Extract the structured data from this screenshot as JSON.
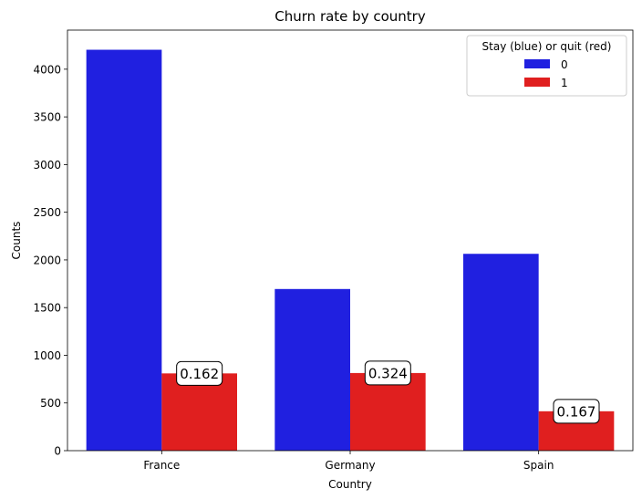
{
  "chart_data": {
    "type": "bar",
    "title": "Churn rate by country",
    "xlabel": "Country",
    "ylabel": "Counts",
    "categories": [
      "France",
      "Germany",
      "Spain"
    ],
    "ylim": [
      0,
      4410
    ],
    "yticks": [
      0,
      500,
      1000,
      1500,
      2000,
      2500,
      3000,
      3500,
      4000
    ],
    "grid": false,
    "legend": {
      "title": "Stay (blue) or quit (red)",
      "placement": "top-right"
    },
    "series": [
      {
        "name": "0",
        "color": "#2020e0",
        "values": [
          4204,
          1695,
          2064
        ]
      },
      {
        "name": "1",
        "color": "#e01f1f",
        "values": [
          810,
          814,
          413
        ]
      }
    ],
    "annotations": [
      "0.162",
      "0.324",
      "0.167"
    ]
  }
}
